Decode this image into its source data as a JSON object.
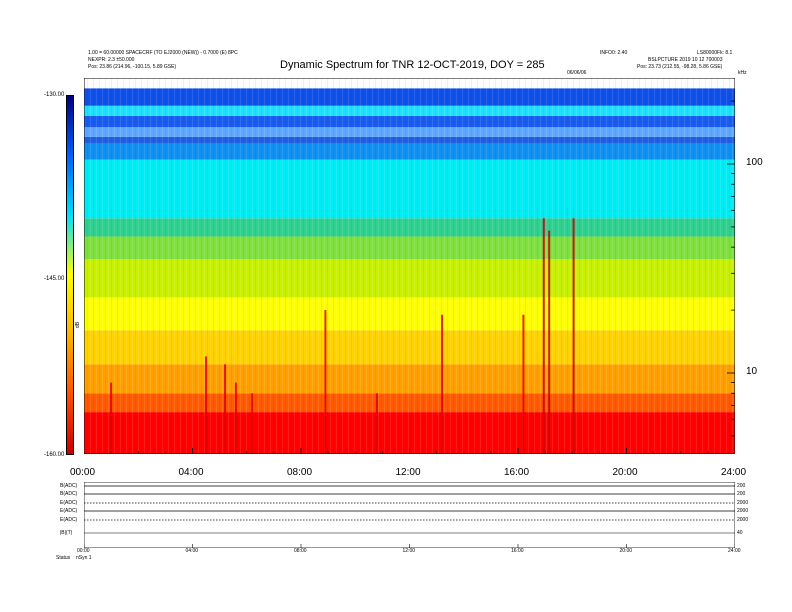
{
  "header": {
    "title": "Dynamic Spectrum for TNR 12-OCT-2019, DOY = 285",
    "left_line1": "1.00 = 60.00000 SPACECRF (TO EJ2000 (NEW)) - 0.7000 (E) 8PC",
    "left_line2": "NEXPR: 2.3 ±50.000",
    "left_line3": "Pos:   23.86 (214.96, -100.15, 5.89 GSE)",
    "right_line1": "INFO0: 2.40",
    "right_line2": "LS80000Fk: 8.1",
    "right_line3": "BSLPCTURE 2019 10 12 700003",
    "right_line4": "Pos:   23.73 (212.55, -98.28, 5.86 GSE)",
    "right_small": "06/06/06",
    "corner": "kHz"
  },
  "colorbar": {
    "ticks": [
      "-130.00",
      "-145.00",
      "-160.00"
    ],
    "label": "dB",
    "colors": [
      "#c80000",
      "#ff5000",
      "#ffb400",
      "#ffff00",
      "#00e0ff",
      "#0060ff",
      "#000080"
    ]
  },
  "chart_data": {
    "type": "heatmap",
    "title": "Dynamic Spectrum for TNR 12-OCT-2019, DOY = 285",
    "x_tick_labels": [
      "00:00",
      "04:00",
      "08:00",
      "12:00",
      "16:00",
      "20:00",
      "24:00"
    ],
    "x_range_hours": [
      0,
      24
    ],
    "y_tick_labels": [
      "100",
      "10"
    ],
    "y_scale": "log",
    "y_unit": "kHz",
    "colorbar_range_db": [
      -160,
      -130
    ],
    "bands": [
      {
        "from": 4,
        "to": 6.5,
        "color": "#ff0000"
      },
      {
        "from": 6.5,
        "to": 8,
        "color": "#ff5a00"
      },
      {
        "from": 8,
        "to": 11,
        "color": "#ffa000"
      },
      {
        "from": 11,
        "to": 16,
        "color": "#ffd200"
      },
      {
        "from": 16,
        "to": 23,
        "color": "#ffff00"
      },
      {
        "from": 23,
        "to": 35,
        "color": "#c8f000"
      },
      {
        "from": 35,
        "to": 45,
        "color": "#80e040"
      },
      {
        "from": 45,
        "to": 55,
        "color": "#30d090"
      },
      {
        "from": 55,
        "to": 105,
        "color": "#00ecf4"
      },
      {
        "from": 105,
        "to": 125,
        "color": "#1090f0"
      },
      {
        "from": 125,
        "to": 135,
        "color": "#2060e0"
      },
      {
        "from": 135,
        "to": 150,
        "color": "#60a8ff"
      },
      {
        "from": 150,
        "to": 170,
        "color": "#1a5cf0"
      },
      {
        "from": 170,
        "to": 190,
        "color": "#20e0ff"
      },
      {
        "from": 190,
        "to": 230,
        "color": "#1050e8"
      }
    ],
    "bursts": [
      {
        "t": 1.0,
        "f_top": 9,
        "color": "#e00000"
      },
      {
        "t": 4.5,
        "f_top": 12,
        "color": "#e00000"
      },
      {
        "t": 5.2,
        "f_top": 11,
        "color": "#e00000"
      },
      {
        "t": 5.6,
        "f_top": 9,
        "color": "#e00000"
      },
      {
        "t": 6.2,
        "f_top": 8,
        "color": "#e00000"
      },
      {
        "t": 8.9,
        "f_top": 20,
        "color": "#e00000"
      },
      {
        "t": 10.8,
        "f_top": 8,
        "color": "#e00000"
      },
      {
        "t": 13.2,
        "f_top": 19,
        "color": "#e00000"
      },
      {
        "t": 16.2,
        "f_top": 19,
        "color": "#e00000"
      },
      {
        "t": 16.95,
        "f_top": 55,
        "color": "#c80000"
      },
      {
        "t": 17.15,
        "f_top": 48,
        "color": "#c80000"
      },
      {
        "t": 18.05,
        "f_top": 55,
        "color": "#c80000"
      }
    ]
  },
  "lower": {
    "panel_labels": [
      "B(ADC)",
      "B(ADC)",
      "E(ADC)",
      "E(ADC)",
      "E(ADC)",
      "|B|(T)"
    ],
    "right_labels": [
      "200",
      "200",
      "2000",
      "2000",
      "2000",
      "40"
    ],
    "x_tick_labels": [
      "00:00",
      "04:00",
      "08:00",
      "12:00",
      "16:00",
      "20:00",
      "24:00"
    ],
    "status_label": "Status",
    "status_value": "nSyn 1"
  }
}
